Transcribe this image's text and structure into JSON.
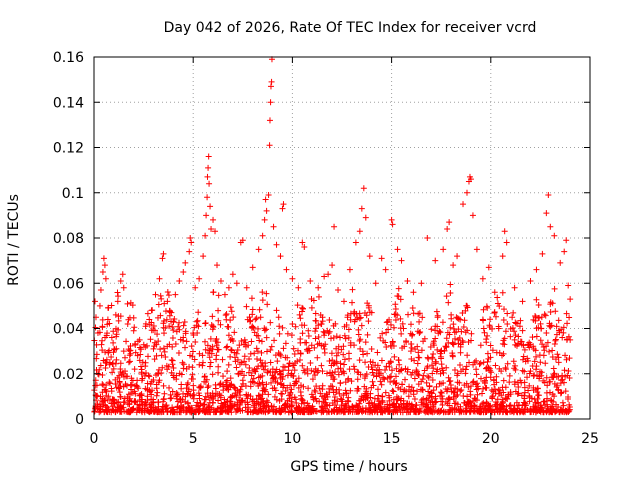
{
  "chart_data": {
    "type": "scatter",
    "title": "Day 042 of 2026, Rate Of TEC Index for receiver vcrd",
    "xlabel": "GPS time / hours",
    "ylabel": "ROTI / TECUs",
    "xlim": [
      0,
      25
    ],
    "ylim": [
      0,
      0.16
    ],
    "xticks": [
      0,
      5,
      10,
      15,
      20,
      25
    ],
    "yticks": [
      0,
      0.02,
      0.04,
      0.06,
      0.08,
      0.1,
      0.12,
      0.14,
      0.16
    ],
    "xtick_labels": [
      "0",
      "5",
      "10",
      "15",
      "20",
      "25"
    ],
    "ytick_labels": [
      "0",
      "0.02",
      "0.04",
      "0.06",
      "0.08",
      "0.1",
      "0.12",
      "0.14",
      "0.16"
    ],
    "grid": true,
    "legend": "none",
    "marker": "+",
    "color": "#ff0000",
    "series": [
      {
        "points": [
          [
            0.05,
            0.052
          ],
          [
            0.1,
            0.045
          ],
          [
            0.2,
            0.038
          ],
          [
            0.3,
            0.05
          ],
          [
            0.35,
            0.057
          ],
          [
            0.45,
            0.065
          ],
          [
            0.5,
            0.071
          ],
          [
            0.55,
            0.068
          ],
          [
            0.6,
            0.062
          ],
          [
            0.7,
            0.044
          ],
          [
            0.9,
            0.036
          ],
          [
            1.1,
            0.046
          ],
          [
            1.2,
            0.052
          ],
          [
            1.35,
            0.061
          ],
          [
            1.45,
            0.064
          ],
          [
            1.5,
            0.058
          ],
          [
            1.7,
            0.042
          ],
          [
            2.0,
            0.039
          ],
          [
            2.3,
            0.035
          ],
          [
            2.6,
            0.041
          ],
          [
            2.9,
            0.048
          ],
          [
            3.1,
            0.055
          ],
          [
            3.3,
            0.062
          ],
          [
            3.45,
            0.071
          ],
          [
            3.5,
            0.073
          ],
          [
            3.7,
            0.052
          ],
          [
            3.9,
            0.047
          ],
          [
            4.1,
            0.055
          ],
          [
            4.3,
            0.061
          ],
          [
            4.5,
            0.065
          ],
          [
            4.6,
            0.069
          ],
          [
            4.8,
            0.074
          ],
          [
            4.85,
            0.08
          ],
          [
            4.9,
            0.078
          ],
          [
            5.1,
            0.058
          ],
          [
            5.3,
            0.062
          ],
          [
            5.5,
            0.072
          ],
          [
            5.6,
            0.081
          ],
          [
            5.65,
            0.09
          ],
          [
            5.7,
            0.098
          ],
          [
            5.72,
            0.107
          ],
          [
            5.75,
            0.111
          ],
          [
            5.78,
            0.116
          ],
          [
            5.8,
            0.104
          ],
          [
            5.85,
            0.094
          ],
          [
            5.9,
            0.084
          ],
          [
            6.0,
            0.088
          ],
          [
            6.1,
            0.083
          ],
          [
            6.2,
            0.068
          ],
          [
            6.4,
            0.061
          ],
          [
            6.6,
            0.055
          ],
          [
            6.8,
            0.058
          ],
          [
            7.0,
            0.064
          ],
          [
            7.2,
            0.06
          ],
          [
            7.4,
            0.078
          ],
          [
            7.5,
            0.079
          ],
          [
            7.7,
            0.058
          ],
          [
            8.0,
            0.067
          ],
          [
            8.3,
            0.075
          ],
          [
            8.5,
            0.081
          ],
          [
            8.6,
            0.088
          ],
          [
            8.65,
            0.097
          ],
          [
            8.7,
            0.092
          ],
          [
            8.8,
            0.099
          ],
          [
            8.85,
            0.121
          ],
          [
            8.87,
            0.132
          ],
          [
            8.9,
            0.14
          ],
          [
            8.92,
            0.147
          ],
          [
            8.95,
            0.149
          ],
          [
            8.97,
            0.159
          ],
          [
            9.05,
            0.085
          ],
          [
            9.2,
            0.077
          ],
          [
            9.4,
            0.072
          ],
          [
            9.5,
            0.093
          ],
          [
            9.55,
            0.095
          ],
          [
            9.7,
            0.066
          ],
          [
            10.0,
            0.062
          ],
          [
            10.3,
            0.058
          ],
          [
            10.5,
            0.078
          ],
          [
            10.6,
            0.076
          ],
          [
            10.9,
            0.061
          ],
          [
            11.3,
            0.058
          ],
          [
            11.6,
            0.063
          ],
          [
            11.8,
            0.064
          ],
          [
            12.0,
            0.068
          ],
          [
            12.1,
            0.085
          ],
          [
            12.3,
            0.057
          ],
          [
            12.6,
            0.052
          ],
          [
            12.9,
            0.066
          ],
          [
            13.2,
            0.078
          ],
          [
            13.4,
            0.083
          ],
          [
            13.5,
            0.093
          ],
          [
            13.6,
            0.102
          ],
          [
            13.7,
            0.089
          ],
          [
            13.9,
            0.072
          ],
          [
            14.2,
            0.06
          ],
          [
            14.5,
            0.071
          ],
          [
            14.7,
            0.066
          ],
          [
            15.0,
            0.088
          ],
          [
            15.05,
            0.086
          ],
          [
            15.3,
            0.075
          ],
          [
            15.5,
            0.07
          ],
          [
            15.8,
            0.061
          ],
          [
            16.1,
            0.056
          ],
          [
            16.5,
            0.06
          ],
          [
            16.8,
            0.08
          ],
          [
            17.2,
            0.07
          ],
          [
            17.6,
            0.075
          ],
          [
            17.8,
            0.084
          ],
          [
            17.9,
            0.087
          ],
          [
            18.1,
            0.068
          ],
          [
            18.3,
            0.072
          ],
          [
            18.6,
            0.095
          ],
          [
            18.8,
            0.1
          ],
          [
            18.9,
            0.105
          ],
          [
            18.95,
            0.107
          ],
          [
            19.0,
            0.106
          ],
          [
            19.1,
            0.09
          ],
          [
            19.3,
            0.075
          ],
          [
            19.6,
            0.062
          ],
          [
            19.9,
            0.067
          ],
          [
            20.2,
            0.056
          ],
          [
            20.6,
            0.072
          ],
          [
            20.7,
            0.083
          ],
          [
            20.8,
            0.078
          ],
          [
            21.2,
            0.058
          ],
          [
            21.6,
            0.052
          ],
          [
            22.0,
            0.061
          ],
          [
            22.3,
            0.066
          ],
          [
            22.6,
            0.073
          ],
          [
            22.8,
            0.091
          ],
          [
            22.9,
            0.099
          ],
          [
            23.0,
            0.085
          ],
          [
            23.2,
            0.081
          ],
          [
            23.5,
            0.069
          ],
          [
            23.7,
            0.074
          ],
          [
            23.8,
            0.079
          ],
          [
            23.9,
            0.059
          ],
          [
            24.0,
            0.053
          ],
          [
            24.0,
            0.035
          ],
          [
            0.2,
            0.02
          ],
          [
            0.8,
            0.025
          ],
          [
            1.5,
            0.03
          ],
          [
            2.2,
            0.028
          ],
          [
            3.0,
            0.031
          ],
          [
            3.8,
            0.033
          ],
          [
            4.5,
            0.036
          ],
          [
            5.2,
            0.038
          ],
          [
            6.0,
            0.041
          ],
          [
            6.8,
            0.037
          ],
          [
            7.6,
            0.035
          ],
          [
            8.4,
            0.045
          ],
          [
            9.2,
            0.048
          ],
          [
            10.0,
            0.042
          ],
          [
            10.8,
            0.039
          ],
          [
            11.6,
            0.037
          ],
          [
            12.4,
            0.036
          ],
          [
            13.2,
            0.044
          ],
          [
            14.0,
            0.047
          ],
          [
            14.8,
            0.043
          ],
          [
            15.6,
            0.04
          ],
          [
            16.4,
            0.038
          ],
          [
            17.2,
            0.041
          ],
          [
            18.0,
            0.046
          ],
          [
            18.8,
            0.05
          ],
          [
            19.6,
            0.044
          ],
          [
            20.4,
            0.04
          ],
          [
            21.2,
            0.035
          ],
          [
            22.0,
            0.033
          ],
          [
            22.8,
            0.038
          ],
          [
            23.6,
            0.036
          ]
        ]
      }
    ]
  }
}
